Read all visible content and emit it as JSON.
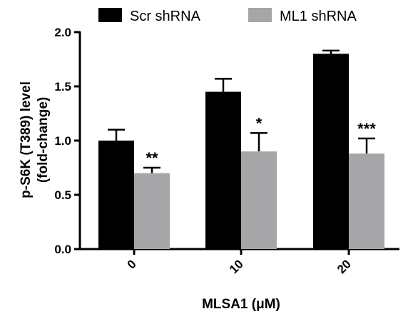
{
  "chart_data": {
    "type": "bar",
    "xlabel": "MLSA1 (μM)",
    "ylabel_line1": "p-S6K (T389) level",
    "ylabel_line2": "(fold-change)",
    "categories": [
      "0",
      "10",
      "20"
    ],
    "ylim": [
      0,
      2.0
    ],
    "yticks": [
      "0.0",
      "0.5",
      "1.0",
      "1.5",
      "2.0"
    ],
    "legend_position": "top",
    "series": [
      {
        "name": "Scr shRNA",
        "color": "#000000",
        "values": [
          1.0,
          1.45,
          1.8
        ],
        "errors": [
          0.1,
          0.12,
          0.03
        ],
        "significance": [
          "",
          "",
          ""
        ]
      },
      {
        "name": "ML1 shRNA",
        "color": "#a6a6a8",
        "values": [
          0.7,
          0.9,
          0.88
        ],
        "errors": [
          0.05,
          0.17,
          0.14
        ],
        "significance": [
          "**",
          "*",
          "***"
        ]
      }
    ]
  }
}
